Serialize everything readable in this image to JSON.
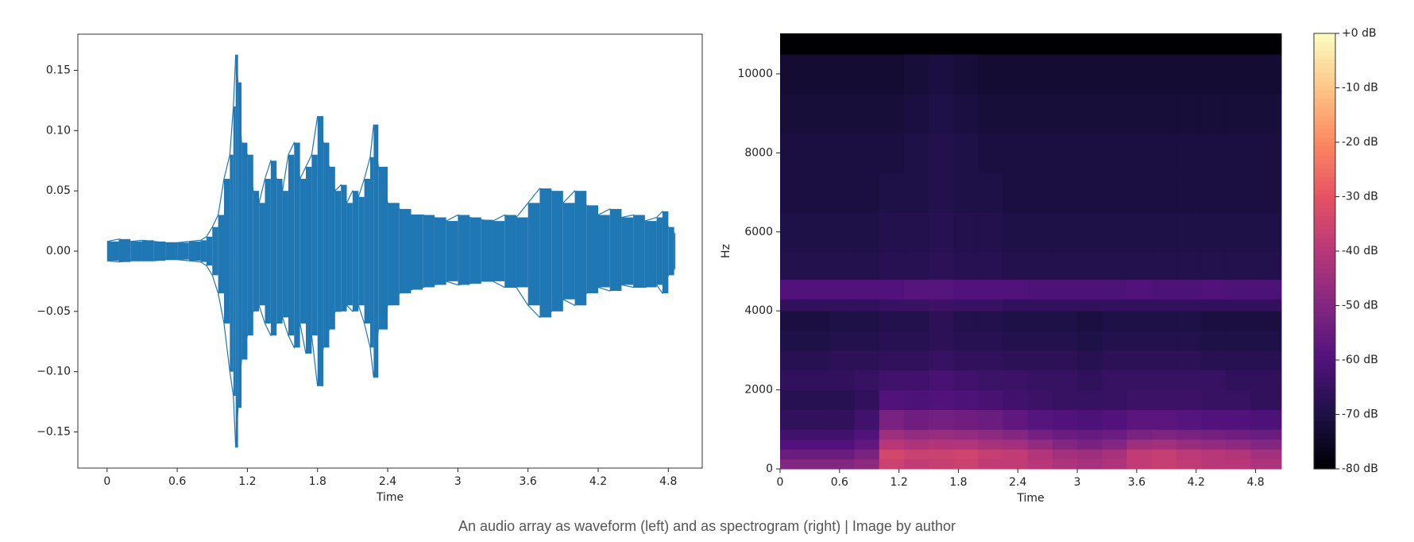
{
  "chart_data": [
    {
      "type": "waveform",
      "xlabel": "Time",
      "xlim": [
        -0.25,
        5.09
      ],
      "ylim": [
        -0.18,
        0.18
      ],
      "xticks": [
        0,
        0.6,
        1.2,
        1.8,
        2.4,
        3,
        3.6,
        4.2,
        4.8
      ],
      "yticks": [
        {
          "value": 0.15,
          "label": "0.15"
        },
        {
          "value": 0.1,
          "label": "0.10"
        },
        {
          "value": 0.05,
          "label": "0.05"
        },
        {
          "value": 0,
          "label": "0.00"
        },
        {
          "value": -0.05,
          "label": "−0.05"
        },
        {
          "value": -0.1,
          "label": "−0.10"
        },
        {
          "value": -0.15,
          "label": "−0.15"
        }
      ],
      "x": [
        0,
        0.1,
        0.2,
        0.3,
        0.4,
        0.5,
        0.6,
        0.7,
        0.8,
        0.85,
        0.9,
        0.95,
        1.0,
        1.05,
        1.08,
        1.1,
        1.12,
        1.15,
        1.2,
        1.25,
        1.3,
        1.35,
        1.4,
        1.45,
        1.5,
        1.55,
        1.6,
        1.65,
        1.7,
        1.75,
        1.8,
        1.85,
        1.9,
        1.95,
        2.0,
        2.05,
        2.1,
        2.15,
        2.2,
        2.25,
        2.28,
        2.32,
        2.4,
        2.5,
        2.6,
        2.7,
        2.8,
        2.9,
        3.0,
        3.1,
        3.2,
        3.3,
        3.4,
        3.5,
        3.6,
        3.7,
        3.8,
        3.9,
        4.0,
        4.1,
        4.2,
        4.3,
        4.4,
        4.5,
        4.6,
        4.7,
        4.75,
        4.8,
        4.85
      ],
      "series": [
        {
          "color": "#1f77b4",
          "values": [
            0.008,
            0.01,
            0.008,
            0.009,
            0.008,
            0.007,
            0.007,
            0.008,
            0.009,
            0.012,
            0.02,
            0.03,
            0.06,
            0.08,
            0.12,
            0.163,
            0.14,
            0.09,
            0.08,
            0.05,
            0.04,
            0.06,
            0.075,
            0.06,
            0.05,
            0.08,
            0.09,
            0.06,
            0.07,
            0.08,
            0.112,
            0.09,
            0.07,
            0.05,
            0.055,
            0.04,
            0.05,
            0.045,
            0.06,
            0.078,
            0.105,
            0.07,
            0.04,
            0.035,
            0.03,
            0.03,
            0.028,
            0.025,
            0.03,
            0.028,
            0.026,
            0.025,
            0.03,
            0.028,
            0.04,
            0.052,
            0.05,
            0.04,
            0.05,
            0.038,
            0.03,
            0.035,
            0.028,
            0.03,
            0.025,
            0.028,
            0.033,
            0.02,
            0.015
          ]
        },
        {
          "color": "#1f77b4",
          "values": [
            -0.008,
            -0.009,
            -0.008,
            -0.008,
            -0.008,
            -0.007,
            -0.007,
            -0.008,
            -0.009,
            -0.012,
            -0.02,
            -0.035,
            -0.06,
            -0.1,
            -0.12,
            -0.163,
            -0.13,
            -0.09,
            -0.07,
            -0.05,
            -0.045,
            -0.06,
            -0.07,
            -0.06,
            -0.055,
            -0.07,
            -0.08,
            -0.06,
            -0.085,
            -0.07,
            -0.112,
            -0.08,
            -0.065,
            -0.05,
            -0.05,
            -0.045,
            -0.05,
            -0.045,
            -0.06,
            -0.08,
            -0.105,
            -0.065,
            -0.045,
            -0.035,
            -0.032,
            -0.03,
            -0.028,
            -0.025,
            -0.028,
            -0.027,
            -0.025,
            -0.025,
            -0.03,
            -0.03,
            -0.045,
            -0.055,
            -0.05,
            -0.04,
            -0.045,
            -0.035,
            -0.03,
            -0.033,
            -0.028,
            -0.03,
            -0.03,
            -0.028,
            -0.035,
            -0.02,
            -0.015
          ]
        }
      ]
    },
    {
      "type": "heatmap",
      "xlabel": "Time",
      "ylabel": "Hz",
      "xlim": [
        0,
        5.06
      ],
      "ylim": [
        0,
        11025
      ],
      "xticks": [
        0,
        0.6,
        1.2,
        1.8,
        2.4,
        3,
        3.6,
        4.2,
        4.8
      ],
      "yticks": [
        0,
        2000,
        4000,
        6000,
        8000,
        10000
      ],
      "xbins": [
        0,
        0.25,
        0.5,
        0.75,
        1.0,
        1.25,
        1.5,
        1.75,
        2.0,
        2.25,
        2.5,
        2.75,
        3.0,
        3.25,
        3.5,
        3.75,
        4.0,
        4.25,
        4.5,
        4.75,
        5.06
      ],
      "ybins": [
        0,
        250,
        500,
        750,
        1000,
        1500,
        2000,
        2500,
        3000,
        3500,
        4000,
        4300,
        4800,
        5500,
        6500,
        7500,
        8500,
        9500,
        10500,
        11025
      ],
      "z": [
        [
          -50,
          -50,
          -50,
          -48,
          -36,
          -38,
          -37,
          -36,
          -38,
          -38,
          -40,
          -42,
          -43,
          -42,
          -38,
          -37,
          -38,
          -40,
          -40,
          -42
        ],
        [
          -55,
          -55,
          -55,
          -52,
          -34,
          -36,
          -36,
          -35,
          -37,
          -38,
          -41,
          -44,
          -45,
          -43,
          -38,
          -37,
          -39,
          -40,
          -41,
          -44
        ],
        [
          -60,
          -60,
          -60,
          -57,
          -40,
          -42,
          -41,
          -41,
          -43,
          -44,
          -47,
          -50,
          -52,
          -50,
          -45,
          -44,
          -46,
          -47,
          -48,
          -50
        ],
        [
          -63,
          -63,
          -63,
          -60,
          -45,
          -47,
          -46,
          -47,
          -48,
          -50,
          -53,
          -55,
          -56,
          -55,
          -52,
          -51,
          -52,
          -53,
          -54,
          -55
        ],
        [
          -66,
          -66,
          -66,
          -63,
          -52,
          -54,
          -53,
          -54,
          -55,
          -57,
          -59,
          -60,
          -61,
          -60,
          -58,
          -58,
          -59,
          -60,
          -60,
          -61
        ],
        [
          -68,
          -68,
          -68,
          -66,
          -60,
          -61,
          -60,
          -61,
          -62,
          -63,
          -64,
          -65,
          -65,
          -65,
          -64,
          -64,
          -64,
          -65,
          -65,
          -66
        ],
        [
          -66,
          -66,
          -66,
          -65,
          -63,
          -63,
          -62,
          -63,
          -64,
          -64,
          -65,
          -65,
          -66,
          -65,
          -65,
          -65,
          -65,
          -65,
          -66,
          -66
        ],
        [
          -68,
          -68,
          -67,
          -67,
          -66,
          -66,
          -65,
          -66,
          -66,
          -67,
          -67,
          -67,
          -68,
          -67,
          -67,
          -67,
          -67,
          -68,
          -68,
          -68
        ],
        [
          -70,
          -70,
          -69,
          -69,
          -68,
          -68,
          -67,
          -68,
          -68,
          -69,
          -69,
          -69,
          -70,
          -69,
          -69,
          -69,
          -69,
          -70,
          -70,
          -70
        ],
        [
          -71,
          -71,
          -70,
          -70,
          -69,
          -69,
          -67,
          -69,
          -69,
          -70,
          -70,
          -70,
          -71,
          -70,
          -70,
          -70,
          -70,
          -71,
          -71,
          -71
        ],
        [
          -66,
          -66,
          -66,
          -66,
          -65,
          -65,
          -64,
          -65,
          -65,
          -66,
          -66,
          -66,
          -66,
          -66,
          -66,
          -66,
          -66,
          -66,
          -66,
          -66
        ],
        [
          -60,
          -60,
          -60,
          -60,
          -60,
          -59,
          -59,
          -60,
          -60,
          -60,
          -61,
          -61,
          -61,
          -61,
          -60,
          -61,
          -61,
          -60,
          -61,
          -61
        ],
        [
          -69,
          -69,
          -69,
          -69,
          -68,
          -68,
          -67,
          -68,
          -68,
          -69,
          -69,
          -69,
          -69,
          -69,
          -69,
          -69,
          -69,
          -69,
          -69,
          -69
        ],
        [
          -70,
          -70,
          -70,
          -70,
          -69,
          -69,
          -68,
          -69,
          -69,
          -70,
          -70,
          -70,
          -70,
          -70,
          -70,
          -70,
          -70,
          -70,
          -70,
          -70
        ],
        [
          -71,
          -71,
          -71,
          -71,
          -70,
          -70,
          -69,
          -70,
          -70,
          -71,
          -71,
          -71,
          -71,
          -71,
          -71,
          -71,
          -71,
          -71,
          -71,
          -71
        ],
        [
          -71,
          -71,
          -71,
          -71,
          -71,
          -70,
          -69,
          -70,
          -71,
          -71,
          -71,
          -71,
          -71,
          -71,
          -71,
          -71,
          -71,
          -71,
          -71,
          -71
        ],
        [
          -72,
          -72,
          -72,
          -72,
          -72,
          -71,
          -70,
          -71,
          -72,
          -72,
          -72,
          -72,
          -72,
          -72,
          -72,
          -72,
          -72,
          -72,
          -72,
          -72
        ],
        [
          -73,
          -73,
          -73,
          -73,
          -73,
          -72,
          -71,
          -72,
          -73,
          -73,
          -73,
          -73,
          -73,
          -73,
          -73,
          -73,
          -73,
          -73,
          -73,
          -73
        ],
        [
          -80,
          -80,
          -80,
          -80,
          -80,
          -80,
          -80,
          -80,
          -80,
          -80,
          -80,
          -80,
          -80,
          -80,
          -80,
          -80,
          -80,
          -80,
          -80,
          -80
        ]
      ],
      "colorscale": [
        "#000004",
        "#1d1147",
        "#51127c",
        "#832681",
        "#b73779",
        "#e75263",
        "#fc8961",
        "#fec488",
        "#fcfdbf"
      ],
      "colorbar": {
        "lim": [
          -80,
          0
        ],
        "ticks": [
          {
            "value": 0,
            "label": "+0 dB"
          },
          {
            "value": -10,
            "label": "-10 dB"
          },
          {
            "value": -20,
            "label": "-20 dB"
          },
          {
            "value": -30,
            "label": "-30 dB"
          },
          {
            "value": -40,
            "label": "-40 dB"
          },
          {
            "value": -50,
            "label": "-50 dB"
          },
          {
            "value": -60,
            "label": "-60 dB"
          },
          {
            "value": -70,
            "label": "-70 dB"
          },
          {
            "value": -80,
            "label": "-80 dB"
          }
        ]
      }
    }
  ],
  "caption": "An audio array as waveform (left) and as spectrogram (right) | Image by author"
}
